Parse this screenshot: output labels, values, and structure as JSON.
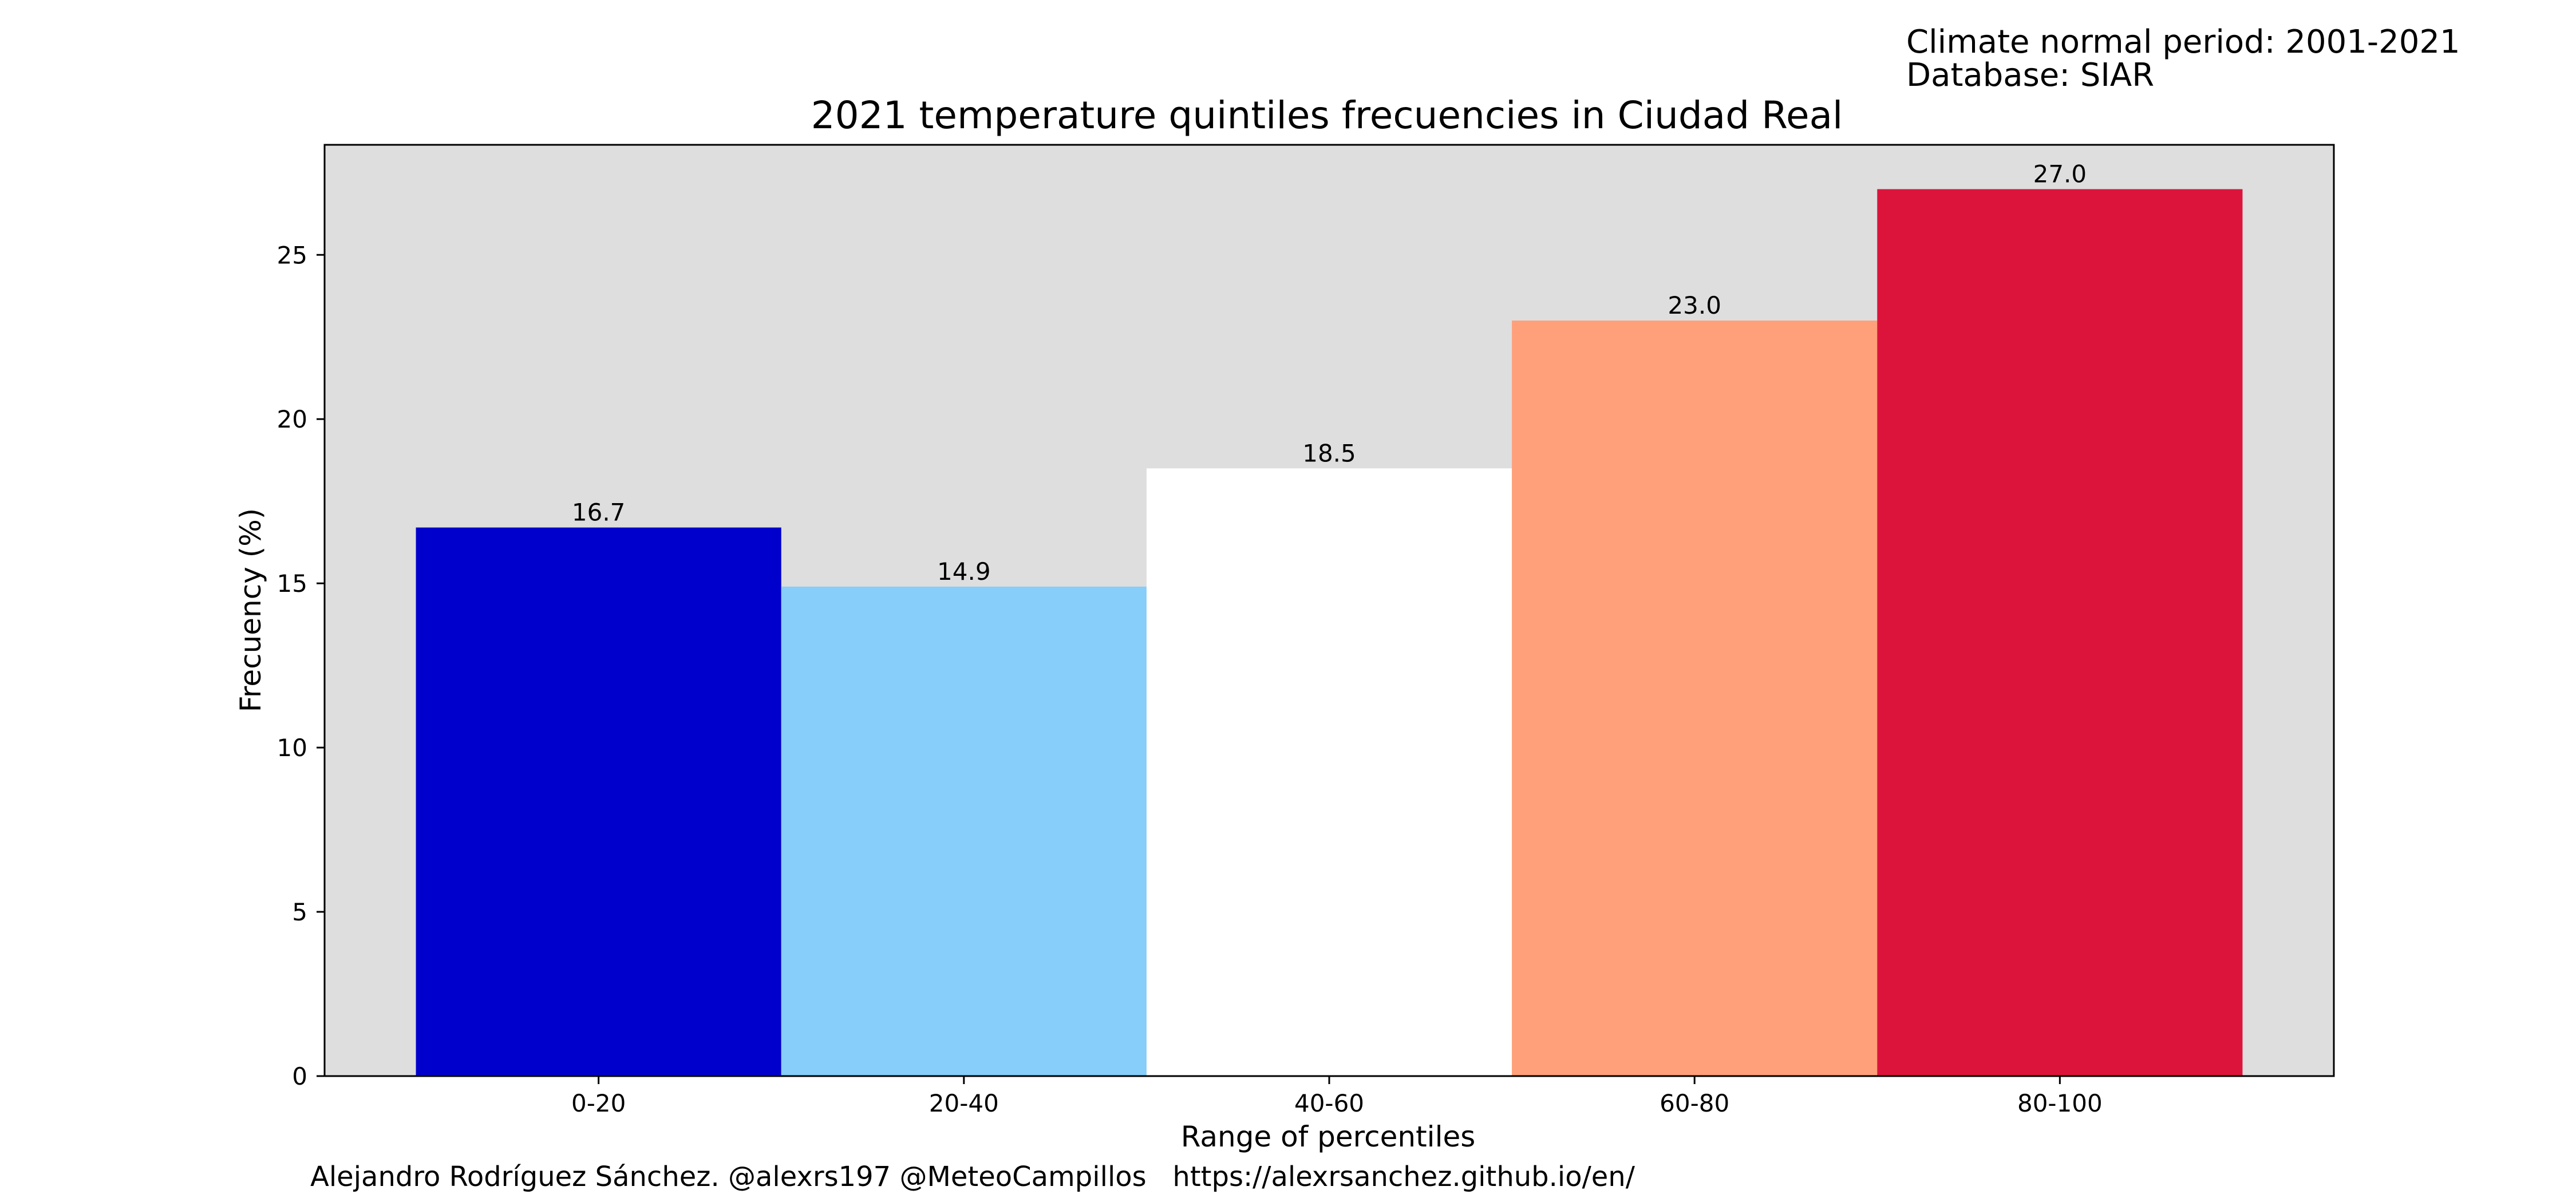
{
  "chart_data": {
    "type": "bar",
    "title": "2021 temperature quintiles frecuencies in Ciudad Real",
    "xlabel": "Range of percentiles",
    "ylabel": "Frecuency (%)",
    "categories": [
      "0-20",
      "20-40",
      "40-60",
      "60-80",
      "80-100"
    ],
    "values": [
      16.7,
      14.9,
      18.5,
      23.0,
      27.0
    ],
    "value_labels": [
      "16.7",
      "14.9",
      "18.5",
      "23.0",
      "27.0"
    ],
    "bar_colors": [
      "#0000CD",
      "#87CEFA",
      "#FFFFFF",
      "#FFA07A",
      "#DC143C"
    ],
    "ylim": [
      0,
      28.35
    ],
    "yticks": [
      0,
      5,
      10,
      15,
      20,
      25
    ],
    "grid": false,
    "legend": "none",
    "plot_background": "#DEDEDE"
  },
  "annotations": {
    "climate_period": "Climate normal period: 2001-2021",
    "database": "Database: SIAR"
  },
  "footer": {
    "credit": "Alejandro Rodríguez Sánchez. @alexrs197 @MeteoCampillos   https://alexrsanchez.github.io/en/"
  }
}
